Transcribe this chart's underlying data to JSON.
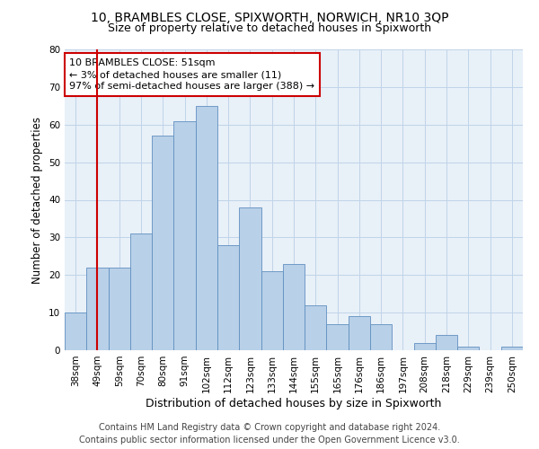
{
  "title": "10, BRAMBLES CLOSE, SPIXWORTH, NORWICH, NR10 3QP",
  "subtitle": "Size of property relative to detached houses in Spixworth",
  "xlabel": "Distribution of detached houses by size in Spixworth",
  "ylabel": "Number of detached properties",
  "categories": [
    "38sqm",
    "49sqm",
    "59sqm",
    "70sqm",
    "80sqm",
    "91sqm",
    "102sqm",
    "112sqm",
    "123sqm",
    "133sqm",
    "144sqm",
    "155sqm",
    "165sqm",
    "176sqm",
    "186sqm",
    "197sqm",
    "208sqm",
    "218sqm",
    "229sqm",
    "239sqm",
    "250sqm"
  ],
  "values": [
    10,
    22,
    22,
    31,
    57,
    61,
    65,
    28,
    38,
    21,
    23,
    12,
    7,
    9,
    7,
    0,
    2,
    4,
    1,
    0,
    1
  ],
  "bar_color": "#b8d0e8",
  "bar_edge_color": "#6090c0",
  "red_line_x": 1.0,
  "annotation_line1": "10 BRAMBLES CLOSE: 51sqm",
  "annotation_line2": "← 3% of detached houses are smaller (11)",
  "annotation_line3": "97% of semi-detached houses are larger (388) →",
  "annotation_box_color": "#ffffff",
  "annotation_box_edge": "#cc0000",
  "red_line_color": "#cc0000",
  "ylim": [
    0,
    80
  ],
  "yticks": [
    0,
    10,
    20,
    30,
    40,
    50,
    60,
    70,
    80
  ],
  "grid_color": "#c0d4e8",
  "background_color": "#e8f0f8",
  "footer_line1": "Contains HM Land Registry data © Crown copyright and database right 2024.",
  "footer_line2": "Contains public sector information licensed under the Open Government Licence v3.0.",
  "title_fontsize": 10,
  "subtitle_fontsize": 9,
  "xlabel_fontsize": 9,
  "ylabel_fontsize": 8.5,
  "tick_fontsize": 7.5,
  "footer_fontsize": 7,
  "ann_fontsize": 8
}
